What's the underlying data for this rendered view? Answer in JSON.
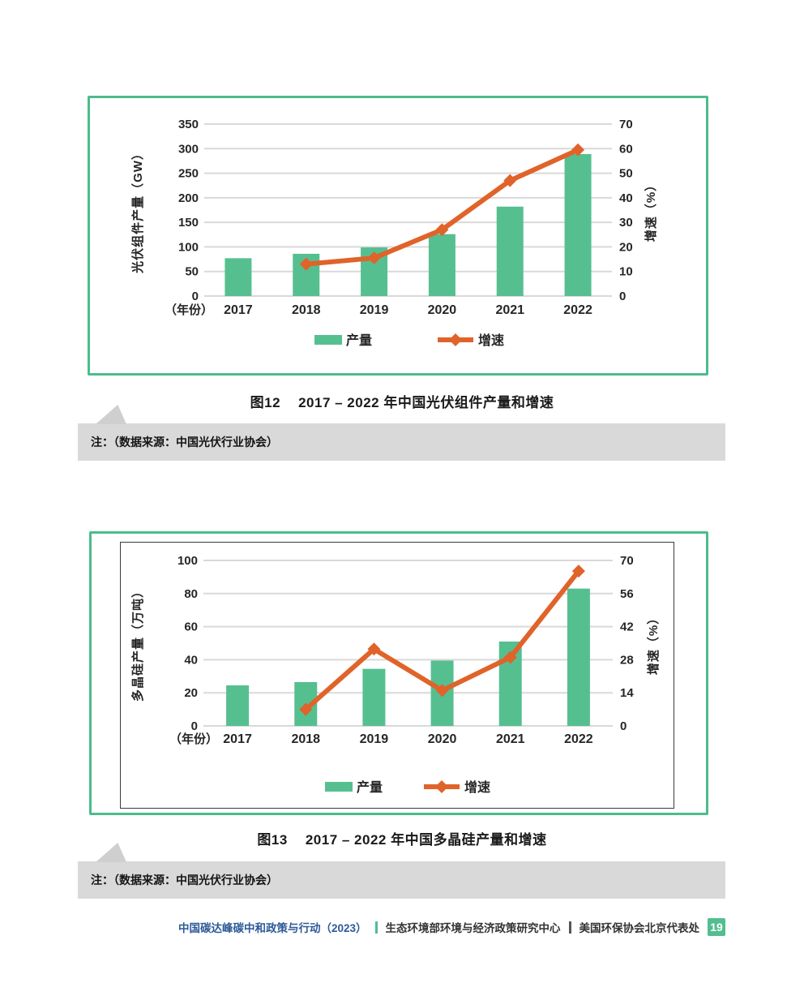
{
  "figure1": {
    "caption_label": "图12",
    "caption_text": "2017 – 2022 年中国光伏组件产量和增速",
    "note": "注：（数据来源：中国光伏行业协会）"
  },
  "figure2": {
    "caption_label": "图13",
    "caption_text": "2017 – 2022 年中国多晶硅产量和增速",
    "note": "注：（数据来源：中国光伏行业协会）"
  },
  "footer": {
    "report_title": "中国碳达峰碳中和政策与行动（2023）",
    "org1": "生态环境部环境与经济政策研究中心",
    "org2": "美国环保协会北京代表处",
    "page_number": "19"
  },
  "colors": {
    "panel_border_green": "#4CBC8D",
    "bar_green": "#56BF90",
    "line_orange": "#E0632A",
    "gridline": "#D9D9D9",
    "note_bar_bg": "#D9D9D9",
    "footer_blue": "#2D5A97",
    "page_badge_green": "#52BE8F"
  },
  "chart_data": [
    {
      "type": "bar+line",
      "title": "图12 2017–2022 年中国光伏组件产量和增速",
      "categories": [
        "2017",
        "2018",
        "2019",
        "2020",
        "2021",
        "2022"
      ],
      "x_axis_prefix_label": "（年份）",
      "series": [
        {
          "name": "产量",
          "type": "bar",
          "axis": "left",
          "color": "#56BF90",
          "values": [
            77,
            86,
            99,
            126,
            182,
            289
          ]
        },
        {
          "name": "增速",
          "type": "line",
          "axis": "right",
          "color": "#E0632A",
          "values": [
            null,
            13,
            15.5,
            27,
            47,
            59.5
          ]
        }
      ],
      "ylabel_left": "光伏组件产量（GW）",
      "ylabel_right": "增速（%）",
      "ylim_left": [
        0,
        350
      ],
      "yticks_left": [
        0,
        50,
        100,
        150,
        200,
        250,
        300,
        350
      ],
      "ylim_right": [
        0,
        70
      ],
      "yticks_right": [
        0,
        10,
        20,
        30,
        40,
        50,
        60,
        70
      ],
      "grid": true,
      "legend_position": "bottom"
    },
    {
      "type": "bar+line",
      "title": "图13 2017–2022 年中国多晶硅产量和增速",
      "categories": [
        "2017",
        "2018",
        "2019",
        "2020",
        "2021",
        "2022"
      ],
      "x_axis_prefix_label": "（年份）",
      "series": [
        {
          "name": "产量",
          "type": "bar",
          "axis": "left",
          "color": "#56BF90",
          "values": [
            24.5,
            26.5,
            34.5,
            39.5,
            51,
            83
          ]
        },
        {
          "name": "增速",
          "type": "line",
          "axis": "right",
          "color": "#E0632A",
          "values": [
            null,
            7,
            32.5,
            15,
            29,
            65.5
          ]
        }
      ],
      "ylabel_left": "多晶硅产量（万吨）",
      "ylabel_right": "增速（%）",
      "ylim_left": [
        0,
        100
      ],
      "yticks_left": [
        0,
        20,
        40,
        60,
        80,
        100
      ],
      "ylim_right": [
        0,
        70
      ],
      "yticks_right": [
        0,
        14,
        28,
        42,
        56,
        70
      ],
      "grid": true,
      "legend_position": "bottom"
    }
  ]
}
